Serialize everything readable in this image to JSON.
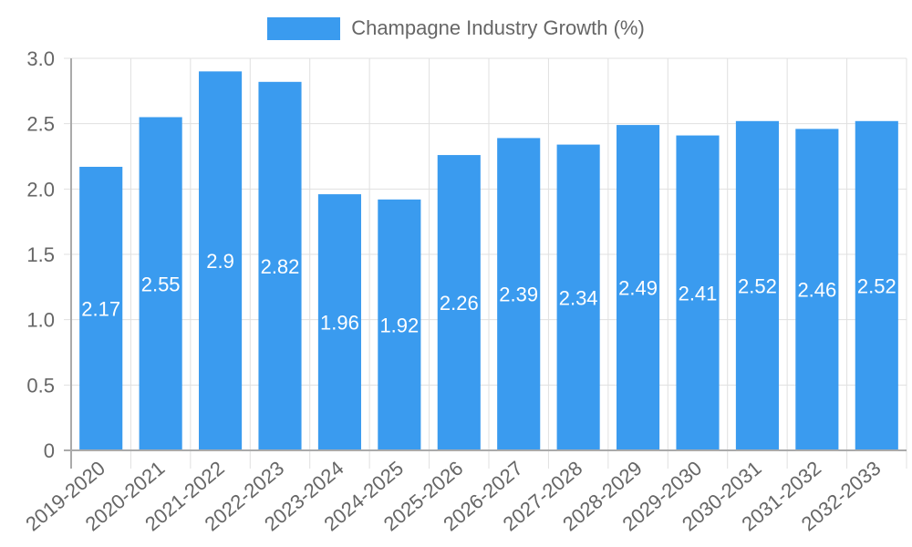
{
  "legend": {
    "label": "Champagne Industry Growth (%)",
    "color": "#3a9bef"
  },
  "colors": {
    "bar": "#3a9bef",
    "grid": "#e0e0e0",
    "axis": "#aaaaaa",
    "tick_text": "#666666",
    "value_label": "#ffffff"
  },
  "chart_data": {
    "type": "bar",
    "title": "",
    "xlabel": "",
    "ylabel": "",
    "ylim": [
      0,
      3.0
    ],
    "yticks": [
      "0",
      "0.5",
      "1.0",
      "1.5",
      "2.0",
      "2.5",
      "3.0"
    ],
    "grid": true,
    "legend_position": "top",
    "categories": [
      "2019-2020",
      "2020-2021",
      "2021-2022",
      "2022-2023",
      "2023-2024",
      "2024-2025",
      "2025-2026",
      "2026-2027",
      "2027-2028",
      "2028-2029",
      "2029-2030",
      "2030-2031",
      "2031-2032",
      "2032-2033"
    ],
    "series": [
      {
        "name": "Champagne Industry Growth (%)",
        "values": [
          2.17,
          2.55,
          2.9,
          2.82,
          1.96,
          1.92,
          2.26,
          2.39,
          2.34,
          2.49,
          2.41,
          2.52,
          2.46,
          2.52
        ]
      }
    ],
    "value_labels": [
      "2.17",
      "2.55",
      "2.9",
      "2.82",
      "1.96",
      "1.92",
      "2.26",
      "2.39",
      "2.34",
      "2.49",
      "2.41",
      "2.52",
      "2.46",
      "2.52"
    ]
  }
}
